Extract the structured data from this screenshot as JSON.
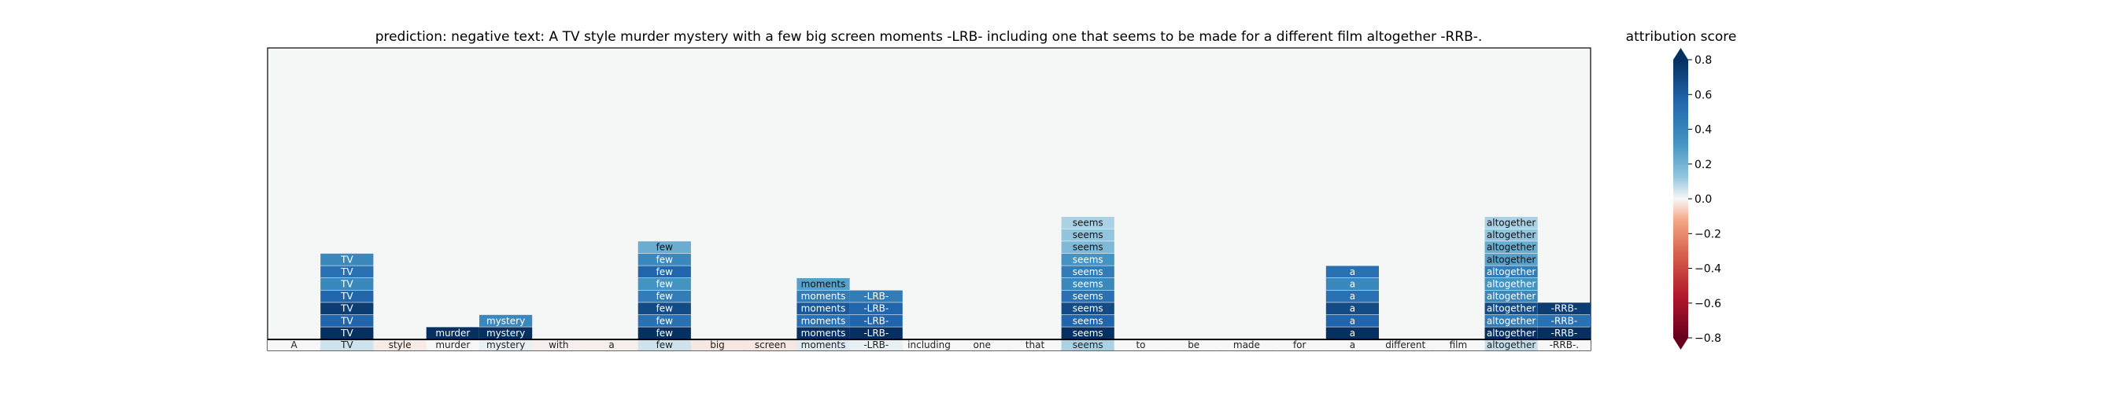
{
  "title": "prediction:  negative     text:  A TV style murder mystery with a few big screen moments -LRB- including one that seems to be made for a different film altogether -RRB-.",
  "colorbar": {
    "label": "attribution score",
    "ticks": [
      "0.8",
      "0.6",
      "0.4",
      "0.2",
      "0.0",
      "−0.2",
      "−0.4",
      "−0.6",
      "−0.8"
    ],
    "tick_values": [
      0.8,
      0.6,
      0.4,
      0.2,
      0.0,
      -0.2,
      -0.4,
      -0.6,
      -0.8
    ],
    "range": [
      -0.8,
      0.8
    ],
    "colors": {
      "neg_strong": "#67001f",
      "neg_mid": "#d6604d",
      "neg_light": "#f4a582",
      "neutral": "#f7f7f7",
      "pos_light": "#92c5de",
      "pos_mid": "#4393c3",
      "pos_strong": "#053061"
    }
  },
  "chart_data": {
    "type": "heatmap",
    "title": "prediction:  negative     text:  A TV style murder mystery with a few big screen moments -LRB- including one that seems to be made for a different film altogether -RRB-.",
    "tokens": [
      "A",
      "TV",
      "style",
      "murder",
      "mystery",
      "with",
      "a",
      "few",
      "big",
      "screen",
      "moments",
      "-LRB-",
      "including",
      "one",
      "that",
      "seems",
      "to",
      "be",
      "made",
      "for",
      "a",
      "different",
      "film",
      "altogether",
      "-RRB-."
    ],
    "token_scores": [
      0.0,
      0.08,
      -0.03,
      0.0,
      0.03,
      -0.02,
      -0.02,
      0.08,
      -0.04,
      -0.04,
      0.05,
      0.03,
      0.0,
      0.0,
      0.0,
      0.15,
      0.0,
      0.0,
      0.0,
      0.0,
      0.0,
      0.0,
      0.0,
      0.1,
      0.0
    ],
    "stacks": [
      {
        "token": "TV",
        "col": 1,
        "values": [
          0.8,
          0.6,
          0.75,
          0.6,
          0.45,
          0.55,
          0.45
        ]
      },
      {
        "token": "murder",
        "col": 3,
        "values": [
          0.8
        ]
      },
      {
        "token": "mystery",
        "col": 4,
        "values": [
          0.8,
          0.45
        ]
      },
      {
        "token": "few",
        "col": 7,
        "values": [
          0.8,
          0.55,
          0.7,
          0.5,
          0.4,
          0.6,
          0.45,
          0.3
        ]
      },
      {
        "token": "moments",
        "col": 10,
        "values": [
          0.8,
          0.55,
          0.65,
          0.5,
          0.35
        ]
      },
      {
        "token": "-LRB-",
        "col": 11,
        "values": [
          0.8,
          0.6,
          0.6,
          0.5
        ]
      },
      {
        "token": "seems",
        "col": 15,
        "values": [
          0.8,
          0.6,
          0.7,
          0.55,
          0.45,
          0.5,
          0.4,
          0.25,
          0.2,
          0.15
        ]
      },
      {
        "token": "a",
        "col": 20,
        "values": [
          0.8,
          0.6,
          0.7,
          0.55,
          0.45,
          0.55
        ]
      },
      {
        "token": "altogether",
        "col": 23,
        "values": [
          0.8,
          0.5,
          0.7,
          0.45,
          0.4,
          0.5,
          0.35,
          0.3,
          0.2,
          0.15
        ]
      },
      {
        "token": "-RRB-",
        "col": 24,
        "values": [
          0.8,
          0.55,
          0.75
        ]
      }
    ]
  }
}
